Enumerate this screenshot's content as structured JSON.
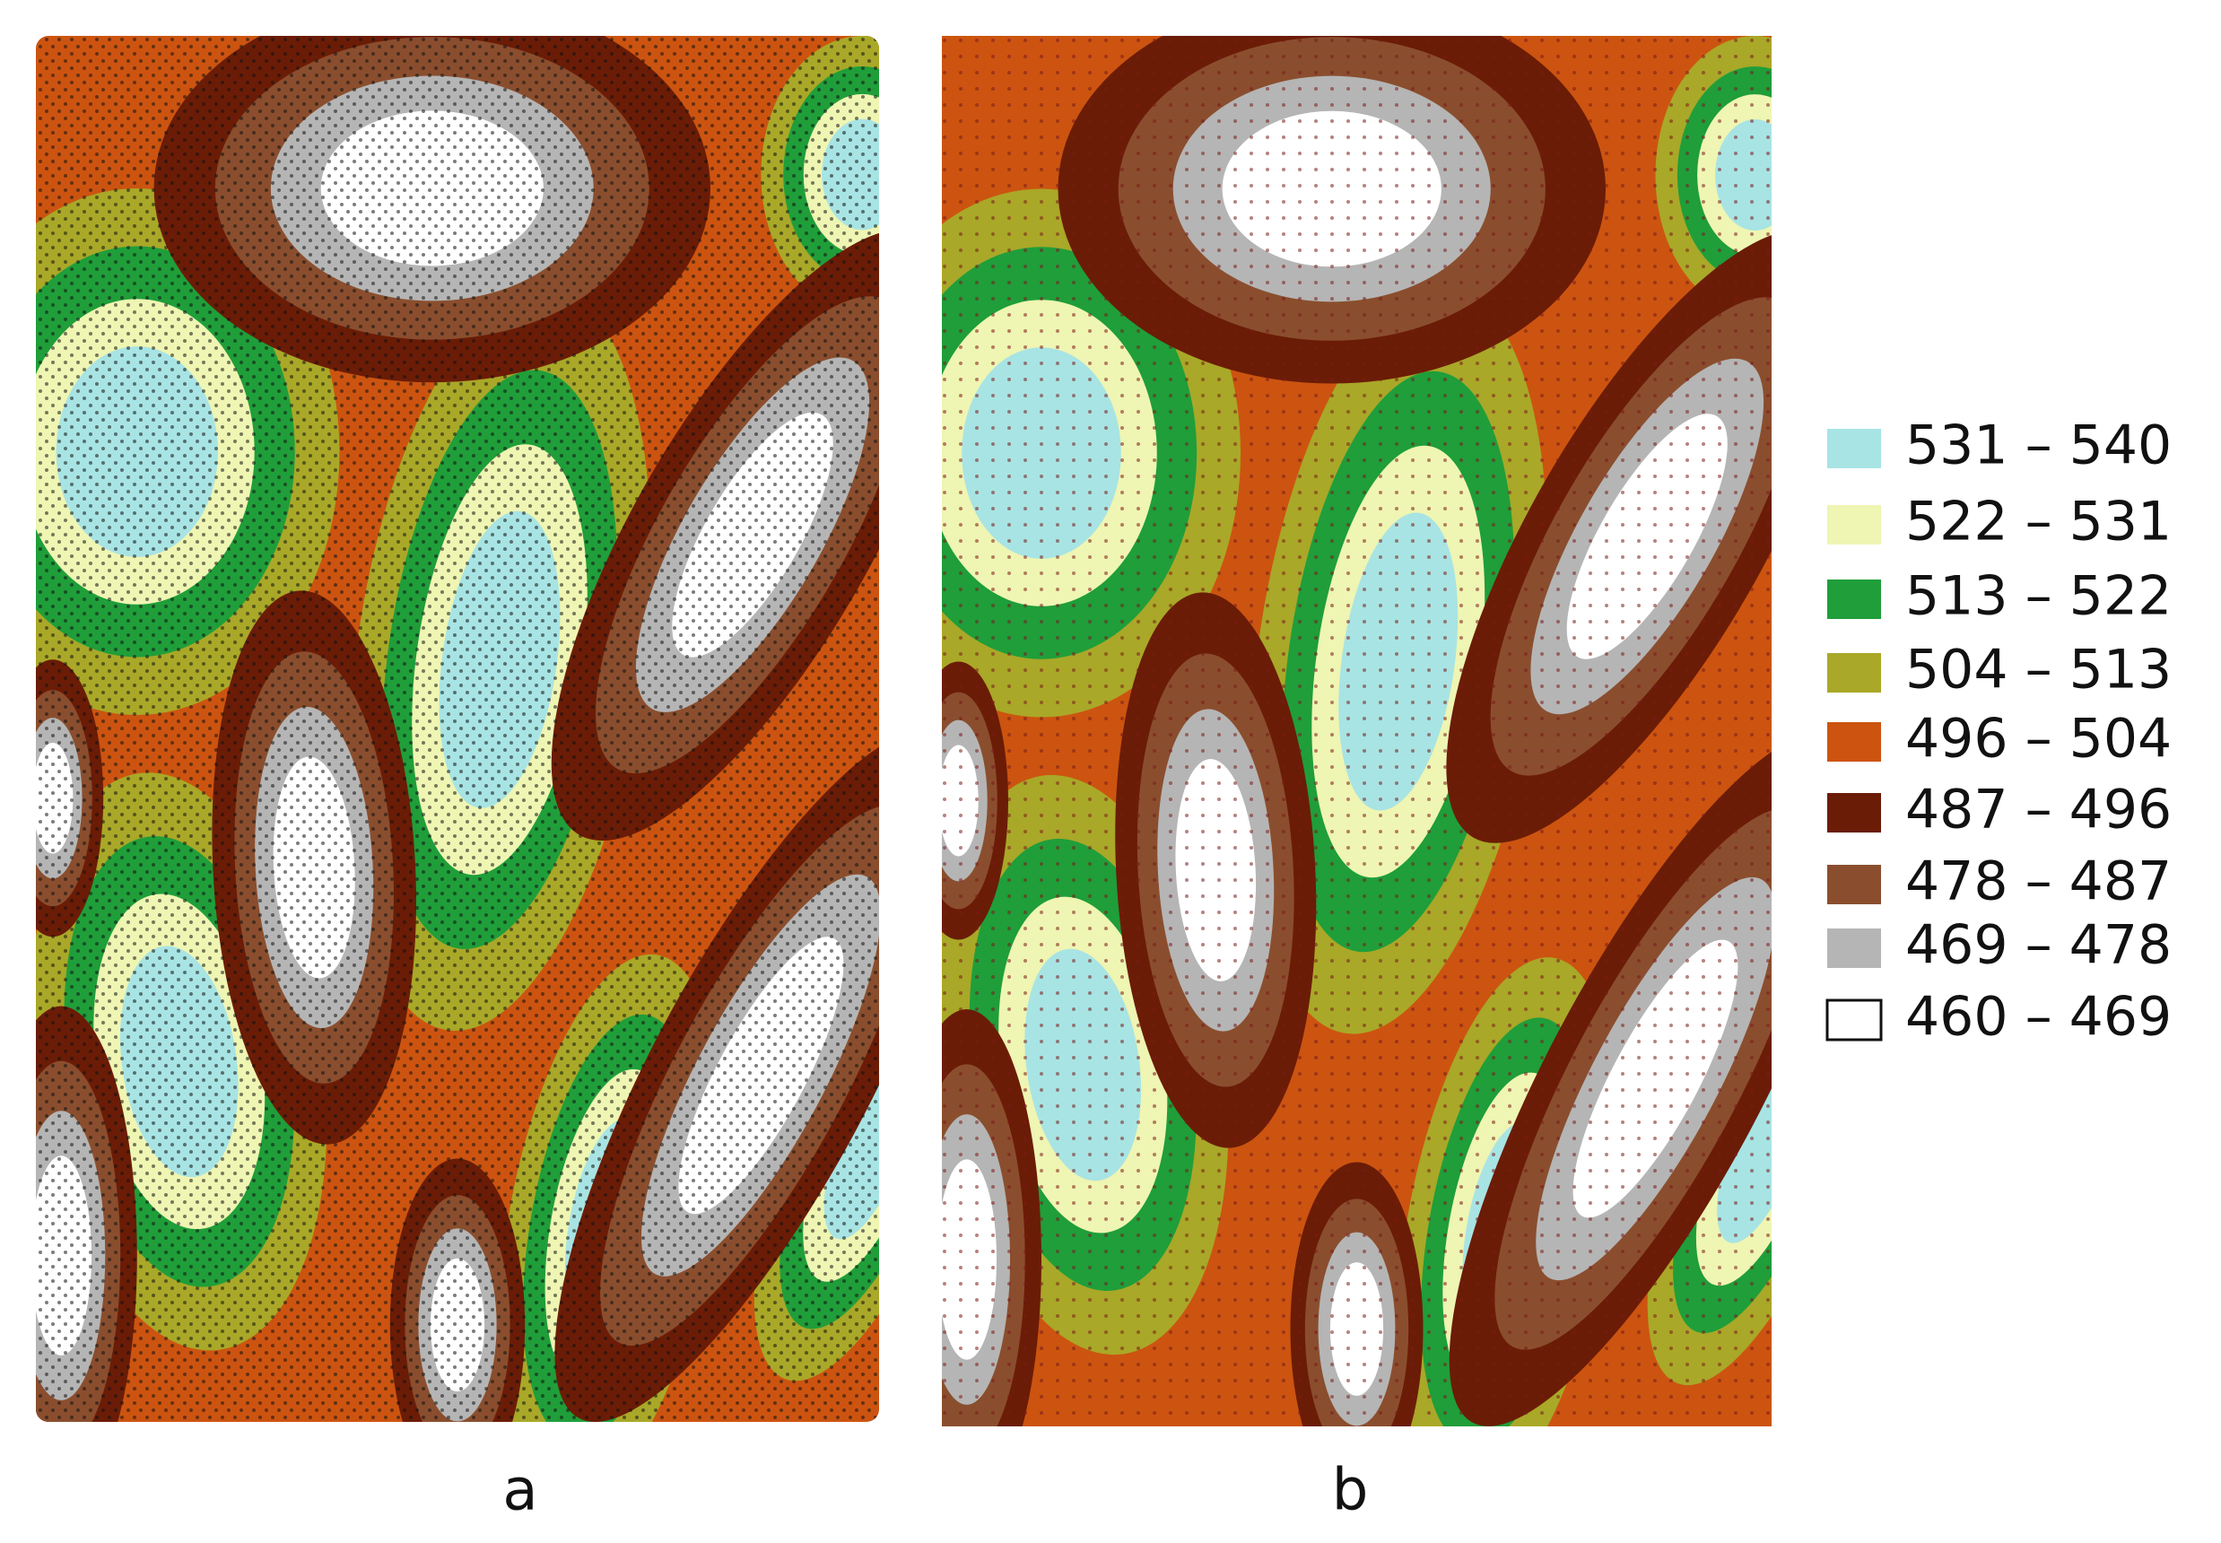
{
  "panels": [
    {
      "label": "a"
    },
    {
      "label": "b"
    }
  ],
  "legend": {
    "items": [
      {
        "label": "531 – 540",
        "color": "#a8e4e4"
      },
      {
        "label": "522 – 531",
        "color": "#eff5b2"
      },
      {
        "label": "513 – 522",
        "color": "#1f9e3a"
      },
      {
        "label": "504 – 513",
        "color": "#a9a828"
      },
      {
        "label": "496 – 504",
        "color": "#cc5410"
      },
      {
        "label": "487 – 496",
        "color": "#6b1c06"
      },
      {
        "label": "478 – 487",
        "color": "#8a4e2e"
      },
      {
        "label": "469 – 478",
        "color": "#b5b5b5"
      },
      {
        "label": "460 – 469",
        "color": "#ffffff"
      }
    ]
  }
}
